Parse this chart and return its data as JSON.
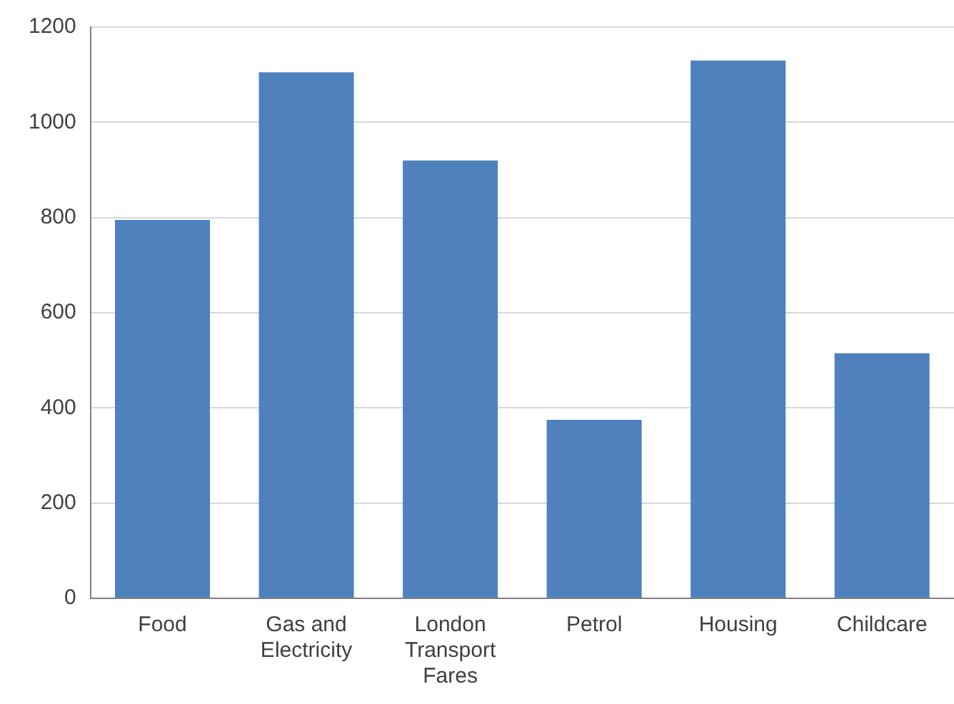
{
  "chart_data": {
    "type": "bar",
    "categories": [
      "Food",
      "Gas and Electricity",
      "London Transport Fares",
      "Petrol",
      "Housing",
      "Childcare"
    ],
    "values": [
      795,
      1105,
      920,
      375,
      1130,
      515
    ],
    "color": "#4f81bd",
    "ylim": [
      0,
      1200
    ],
    "yticks": [
      0,
      200,
      400,
      600,
      800,
      1000,
      1200
    ],
    "grid": "y",
    "legend": false
  }
}
